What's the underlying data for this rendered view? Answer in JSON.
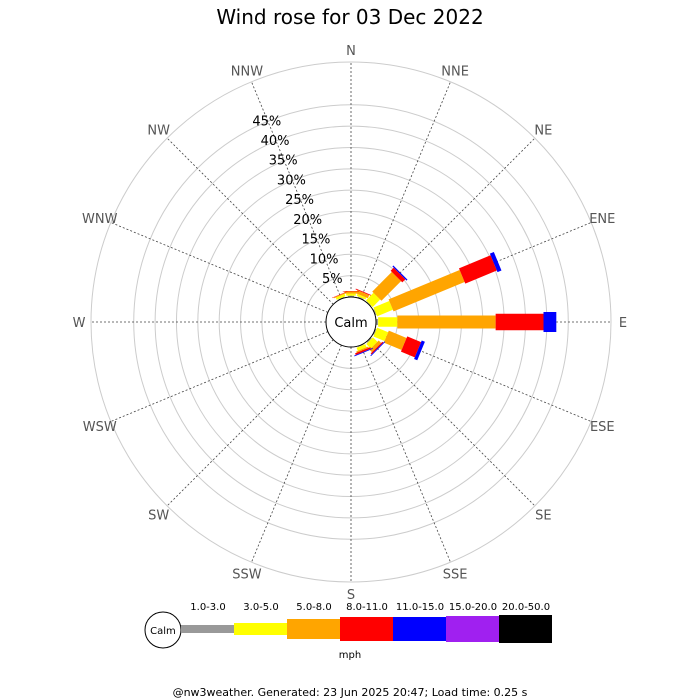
{
  "chart_data": {
    "type": "wind-rose",
    "title": "Wind rose for 03 Dec 2022",
    "directions": [
      "N",
      "NNE",
      "NE",
      "ENE",
      "E",
      "ESE",
      "SE",
      "SSE",
      "S",
      "SSW",
      "SW",
      "WSW",
      "W",
      "WNW",
      "NW",
      "NNW"
    ],
    "rings": [
      5,
      10,
      15,
      20,
      25,
      30,
      35,
      40,
      45
    ],
    "ring_labels": [
      "5%",
      "10%",
      "15%",
      "20%",
      "25%",
      "30%",
      "35%",
      "40%",
      "45%"
    ],
    "rmax": 55,
    "calm_label": "Calm",
    "unit": "mph",
    "bins": [
      {
        "label": "1.0-3.0",
        "color": "#999999"
      },
      {
        "label": "3.0-5.0",
        "color": "#ffff00"
      },
      {
        "label": "5.0-8.0",
        "color": "#ffa500"
      },
      {
        "label": "8.0-11.0",
        "color": "#ff0000"
      },
      {
        "label": "11.0-15.0",
        "color": "#0000ff"
      },
      {
        "label": "15.0-20.0",
        "color": "#a020f0"
      },
      {
        "label": "20.0-50.0",
        "color": "#000000"
      }
    ],
    "series": [
      {
        "direction": "NNE",
        "values": [
          0.3,
          0.5,
          0.8,
          0.2,
          0,
          0,
          0
        ]
      },
      {
        "direction": "NE",
        "values": [
          0.2,
          2.5,
          6.5,
          1.0,
          0.3,
          0,
          0
        ]
      },
      {
        "direction": "ENE",
        "values": [
          0.3,
          4.0,
          18.0,
          8.0,
          1.0,
          0,
          0
        ]
      },
      {
        "direction": "E",
        "values": [
          0.5,
          4.5,
          23.0,
          11.2,
          3.0,
          0,
          0
        ]
      },
      {
        "direction": "ESE",
        "values": [
          0.3,
          2.8,
          4.5,
          3.5,
          0.8,
          0,
          0
        ]
      },
      {
        "direction": "SE",
        "values": [
          0.3,
          1.5,
          0.8,
          0.3,
          0.2,
          0,
          0
        ]
      },
      {
        "direction": "SSE",
        "values": [
          0.2,
          0.8,
          0.3,
          0.4,
          0.2,
          0,
          0
        ]
      },
      {
        "direction": "N",
        "values": [
          0.3,
          0.5,
          0.5,
          0.1,
          0,
          0,
          0
        ]
      },
      {
        "direction": "NNW",
        "values": [
          0.2,
          0.6,
          0.2,
          0.1,
          0,
          0,
          0
        ]
      }
    ]
  },
  "footer": "@nw3weather. Generated: 23 Jun 2025 20:47; Load time: 0.25 s"
}
